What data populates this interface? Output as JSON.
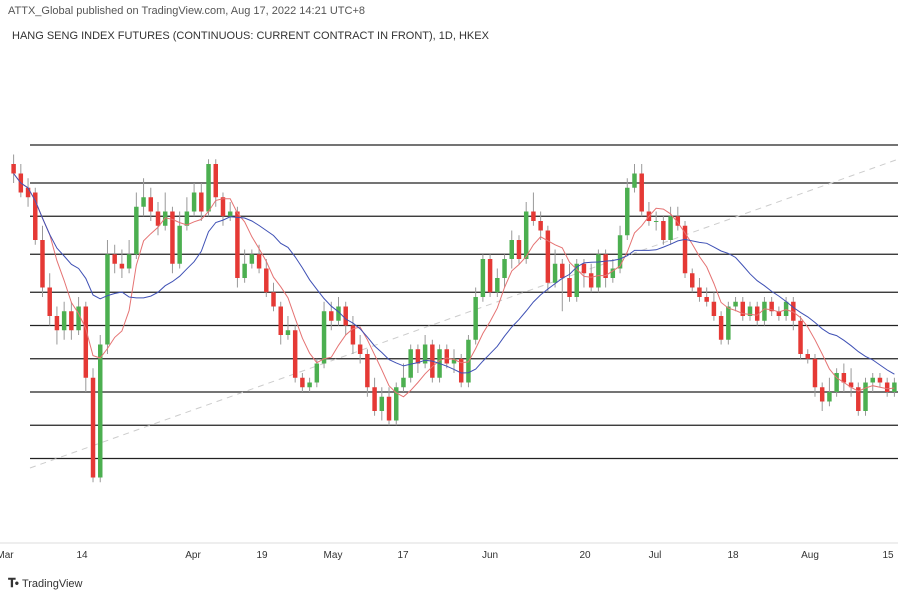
{
  "header": {
    "published_line": "ATTX_Global published on TradingView.com, Aug 17, 2022 14:21 UTC+8",
    "symbol_line": "HANG SENG INDEX FUTURES (CONTINUOUS: CURRENT CONTRACT IN FRONT), 1D, HKEX"
  },
  "footer": {
    "brand": "TradingView",
    "logo_icon": "tradingview-logo-icon"
  },
  "chart_data": {
    "type": "candlestick",
    "x_tick_labels": [
      "Mar",
      "14",
      "Apr",
      "19",
      "May",
      "17",
      "Jun",
      "20",
      "Jul",
      "18",
      "Aug",
      "15"
    ],
    "up_color": "#4caf50",
    "down_color": "#e53935",
    "ma_fast_color": "#e57373",
    "ma_slow_color": "#3f51b5",
    "trendline_color": "#cccccc",
    "horizontal_levels": [
      14,
      21,
      28,
      35,
      42,
      49,
      57,
      65,
      72,
      80
    ],
    "candles": [
      [
        76,
        74,
        78,
        72
      ],
      [
        74,
        70,
        76,
        69
      ],
      [
        71,
        69,
        73,
        67
      ],
      [
        70,
        60,
        71,
        59
      ],
      [
        60,
        50,
        63,
        48
      ],
      [
        50,
        44,
        53,
        42
      ],
      [
        44,
        41,
        46,
        38
      ],
      [
        41,
        45,
        47,
        39
      ],
      [
        45,
        41,
        47,
        39
      ],
      [
        41,
        46,
        48,
        40
      ],
      [
        46,
        31,
        47,
        28
      ],
      [
        31,
        10,
        33,
        9
      ],
      [
        10,
        38,
        40,
        9
      ],
      [
        38,
        57,
        60,
        36
      ],
      [
        57,
        55,
        59,
        53
      ],
      [
        55,
        54,
        58,
        52
      ],
      [
        54,
        57,
        60,
        53
      ],
      [
        57,
        67,
        70,
        56
      ],
      [
        67,
        69,
        73,
        65
      ],
      [
        69,
        66,
        71,
        64
      ],
      [
        66,
        63,
        68,
        61
      ],
      [
        63,
        66,
        70,
        62
      ],
      [
        66,
        55,
        67,
        53
      ],
      [
        55,
        63,
        66,
        54
      ],
      [
        63,
        66,
        69,
        62
      ],
      [
        66,
        70,
        72,
        65
      ],
      [
        70,
        66,
        72,
        64
      ],
      [
        66,
        76,
        77,
        65
      ],
      [
        76,
        69,
        77,
        67
      ],
      [
        69,
        65,
        70,
        63
      ],
      [
        65,
        66,
        68,
        64
      ],
      [
        66,
        52,
        67,
        50
      ],
      [
        52,
        55,
        58,
        51
      ],
      [
        55,
        57,
        58,
        54
      ],
      [
        57,
        54,
        59,
        53
      ],
      [
        54,
        49,
        56,
        48
      ],
      [
        49,
        46,
        51,
        45
      ],
      [
        46,
        40,
        47,
        38
      ],
      [
        40,
        41,
        44,
        39
      ],
      [
        41,
        31,
        42,
        30
      ],
      [
        31,
        29,
        32,
        28
      ],
      [
        29,
        30,
        31,
        28
      ],
      [
        30,
        34,
        35,
        29
      ],
      [
        34,
        45,
        47,
        33
      ],
      [
        45,
        43,
        47,
        41
      ],
      [
        43,
        46,
        48,
        42
      ],
      [
        46,
        42,
        47,
        40
      ],
      [
        42,
        38,
        44,
        36
      ],
      [
        38,
        36,
        40,
        34
      ],
      [
        36,
        29,
        37,
        27
      ],
      [
        29,
        24,
        31,
        23
      ],
      [
        24,
        27,
        29,
        22
      ],
      [
        27,
        22,
        29,
        21
      ],
      [
        22,
        29,
        30,
        21
      ],
      [
        29,
        31,
        34,
        28
      ],
      [
        31,
        37,
        38,
        30
      ],
      [
        37,
        34,
        38,
        32
      ],
      [
        34,
        38,
        40,
        33
      ],
      [
        38,
        31,
        39,
        30
      ],
      [
        31,
        37,
        38,
        30
      ],
      [
        37,
        34,
        38,
        33
      ],
      [
        34,
        35,
        37,
        32
      ],
      [
        35,
        30,
        36,
        29
      ],
      [
        30,
        39,
        40,
        29
      ],
      [
        39,
        48,
        50,
        38
      ],
      [
        48,
        56,
        57,
        47
      ],
      [
        56,
        49,
        57,
        48
      ],
      [
        49,
        52,
        54,
        48
      ],
      [
        52,
        56,
        57,
        50
      ],
      [
        56,
        60,
        62,
        54
      ],
      [
        60,
        56,
        61,
        55
      ],
      [
        56,
        66,
        68,
        55
      ],
      [
        66,
        64,
        70,
        63
      ],
      [
        64,
        62,
        66,
        60
      ],
      [
        62,
        51,
        63,
        49
      ],
      [
        51,
        55,
        58,
        50
      ],
      [
        55,
        52,
        56,
        45
      ],
      [
        52,
        48,
        55,
        47
      ],
      [
        48,
        55,
        56,
        47
      ],
      [
        55,
        53,
        56,
        50
      ],
      [
        53,
        50,
        55,
        49
      ],
      [
        50,
        57,
        58,
        49
      ],
      [
        57,
        52,
        58,
        50
      ],
      [
        52,
        54,
        56,
        51
      ],
      [
        54,
        61,
        63,
        53
      ],
      [
        61,
        71,
        73,
        60
      ],
      [
        71,
        74,
        76,
        70
      ],
      [
        74,
        66,
        76,
        65
      ],
      [
        66,
        64,
        68,
        63
      ],
      [
        64,
        64,
        66,
        62
      ],
      [
        64,
        60,
        65,
        59
      ],
      [
        60,
        65,
        67,
        59
      ],
      [
        65,
        63,
        67,
        62
      ],
      [
        63,
        53,
        64,
        52
      ],
      [
        53,
        50,
        54,
        49
      ],
      [
        50,
        48,
        52,
        47
      ],
      [
        48,
        47,
        50,
        46
      ],
      [
        47,
        44,
        49,
        43
      ],
      [
        44,
        39,
        45,
        38
      ],
      [
        39,
        46,
        47,
        38
      ],
      [
        46,
        47,
        48,
        45
      ],
      [
        47,
        44,
        48,
        43
      ],
      [
        44,
        46,
        47,
        43
      ],
      [
        46,
        43,
        47,
        42
      ],
      [
        43,
        47,
        48,
        42
      ],
      [
        47,
        45,
        48,
        44
      ],
      [
        45,
        44,
        46,
        43
      ],
      [
        44,
        47,
        48,
        43
      ],
      [
        47,
        43,
        48,
        41
      ],
      [
        43,
        36,
        44,
        35
      ],
      [
        36,
        35,
        37,
        34
      ],
      [
        35,
        29,
        36,
        27
      ],
      [
        29,
        26,
        30,
        24
      ],
      [
        26,
        28,
        31,
        25
      ],
      [
        28,
        32,
        33,
        27
      ],
      [
        32,
        30,
        34,
        28
      ],
      [
        30,
        29,
        33,
        27
      ],
      [
        29,
        24,
        30,
        23
      ],
      [
        24,
        30,
        31,
        23
      ],
      [
        30,
        31,
        32,
        28
      ],
      [
        31,
        30,
        32,
        29
      ],
      [
        30,
        28,
        31,
        27
      ],
      [
        28,
        30,
        31,
        27
      ]
    ]
  }
}
